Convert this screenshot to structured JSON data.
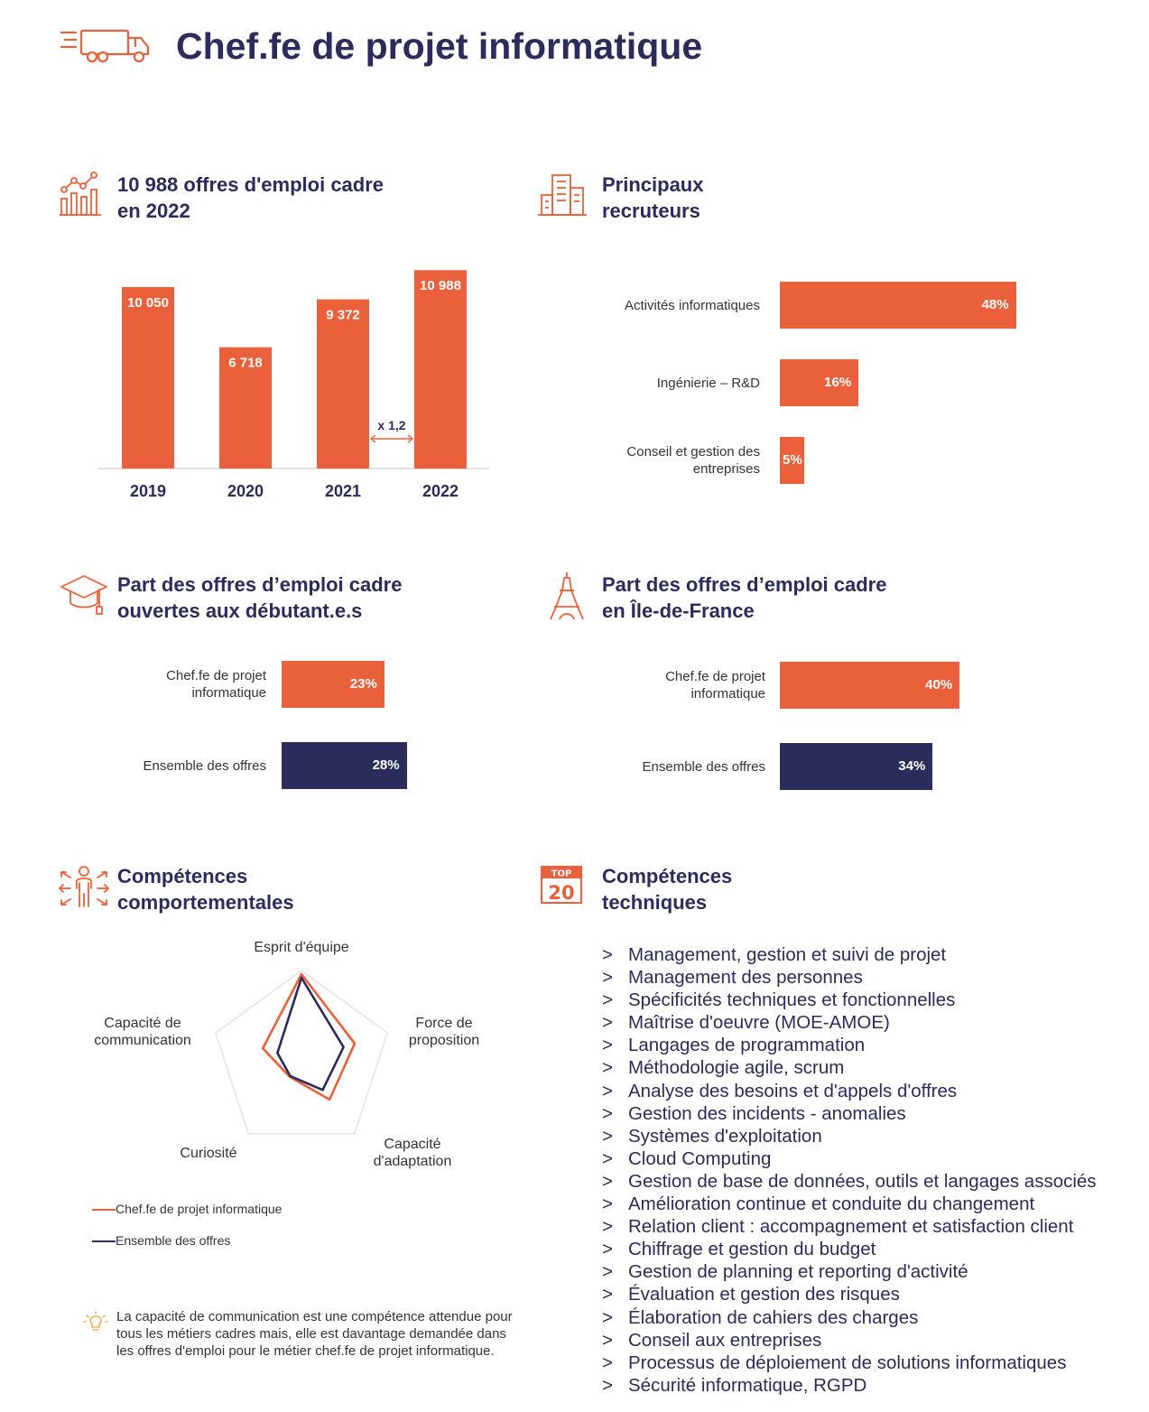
{
  "colors": {
    "orange": "#e9603a",
    "navy": "#2b2b5c",
    "grid": "#e3e3e3"
  },
  "page_title": "Chef.fe de projet informatique",
  "icons": {
    "truck": "truck-icon",
    "growth": "growth-chart-icon",
    "building": "building-icon",
    "graduation": "graduation-cap-icon",
    "eiffel": "eiffel-tower-icon",
    "person": "person-arrows-icon",
    "top20": "top20-badge-icon",
    "bulb": "lightbulb-icon"
  },
  "top20_badge": {
    "top": "TOP",
    "num": "20"
  },
  "offers": {
    "title_line1": "10 988 offres d'emploi cadre",
    "title_line2": "en 2022",
    "growth_label": "x 1,2"
  },
  "recruiters": {
    "title_line1": "Principaux",
    "title_line2": "recruteurs"
  },
  "debutants": {
    "title_line1": "Part des offres d’emploi cadre",
    "title_line2": "ouvertes aux débutant.e.s"
  },
  "idf": {
    "title_line1": "Part des offres d’emploi cadre",
    "title_line2": "en Île-de-France"
  },
  "soft_skills": {
    "title_line1": "Compétences",
    "title_line2": "comportementales",
    "legend": [
      "Chef.fe de projet informatique",
      "Ensemble des offres"
    ],
    "note": "La capacité de communication est une compétence attendue pour tous les métiers cadres mais, elle est davantage demandée dans les offres d'emploi pour le métier chef.fe de projet informatique."
  },
  "tech_skills": {
    "title_line1": "Compétences",
    "title_line2": "techniques",
    "bullet": ">",
    "items": [
      "Management, gestion et suivi de projet",
      "Management des personnes",
      "Spécificités techniques et fonctionnelles",
      "Maîtrise d'oeuvre (MOE-AMOE)",
      "Langages de programmation",
      "Méthodologie agile, scrum",
      "Analyse des besoins et d'appels d'offres",
      "Gestion des incidents - anomalies",
      "Systèmes d'exploitation",
      "Cloud Computing",
      "Gestion de base de données, outils et langages associés",
      "Amélioration continue et conduite du changement",
      "Relation client : accompagnement et satisfaction client",
      "Chiffrage et gestion du budget",
      "Gestion de planning et reporting d'activité",
      "Évaluation et gestion des risques",
      "Élaboration de cahiers des charges",
      "Conseil aux entreprises",
      "Processus de déploiement de solutions informatiques",
      "Sécurité informatique, RGPD"
    ]
  },
  "chart_data": [
    {
      "type": "bar",
      "title": "10 988 offres d'emploi cadre en 2022",
      "categories": [
        "2019",
        "2020",
        "2021",
        "2022"
      ],
      "values": [
        10050,
        6718,
        9372,
        10988
      ],
      "value_labels": [
        "10 050",
        "6 718",
        "9 372",
        "10 988"
      ],
      "ylim": [
        0,
        11000
      ],
      "grid": false,
      "annotation": "x 1,2"
    },
    {
      "type": "bar",
      "orientation": "horizontal",
      "title": "Principaux recruteurs",
      "categories": [
        "Activités informatiques",
        "Ingénierie – R&D",
        "Conseil et gestion des entreprises"
      ],
      "values": [
        48,
        16,
        5
      ],
      "value_labels": [
        "48%",
        "16%",
        "5%"
      ],
      "unit": "%"
    },
    {
      "type": "bar",
      "orientation": "horizontal",
      "title": "Part des offres d’emploi cadre ouvertes aux débutant.e.s",
      "categories": [
        "Chef.fe de projet informatique",
        "Ensemble des offres"
      ],
      "values": [
        23,
        28
      ],
      "value_labels": [
        "23%",
        "28%"
      ],
      "unit": "%"
    },
    {
      "type": "bar",
      "orientation": "horizontal",
      "title": "Part des offres d’emploi cadre en Île-de-France",
      "categories": [
        "Chef.fe de projet informatique",
        "Ensemble des offres"
      ],
      "values": [
        40,
        34
      ],
      "value_labels": [
        "40%",
        "34%"
      ],
      "unit": "%"
    },
    {
      "type": "radar",
      "title": "Compétences comportementales",
      "axes": [
        "Esprit d'équipe",
        "Force de proposition",
        "Capacité d'adaptation",
        "Curiosité",
        "Capacité de communication"
      ],
      "axis_labels": [
        [
          "Esprit d'équipe"
        ],
        [
          "Force de",
          "proposition"
        ],
        [
          "Capacité",
          "d'adaptation"
        ],
        [
          "Curiosité"
        ],
        [
          "Capacité de",
          "communication"
        ]
      ],
      "range": [
        0,
        1
      ],
      "series": [
        {
          "name": "Chef.fe de projet informatique",
          "values": [
            0.96,
            0.62,
            0.53,
            0.22,
            0.45
          ]
        },
        {
          "name": "Ensemble des offres",
          "values": [
            0.92,
            0.49,
            0.4,
            0.21,
            0.28
          ]
        }
      ],
      "legend_position": "bottom-left"
    }
  ]
}
